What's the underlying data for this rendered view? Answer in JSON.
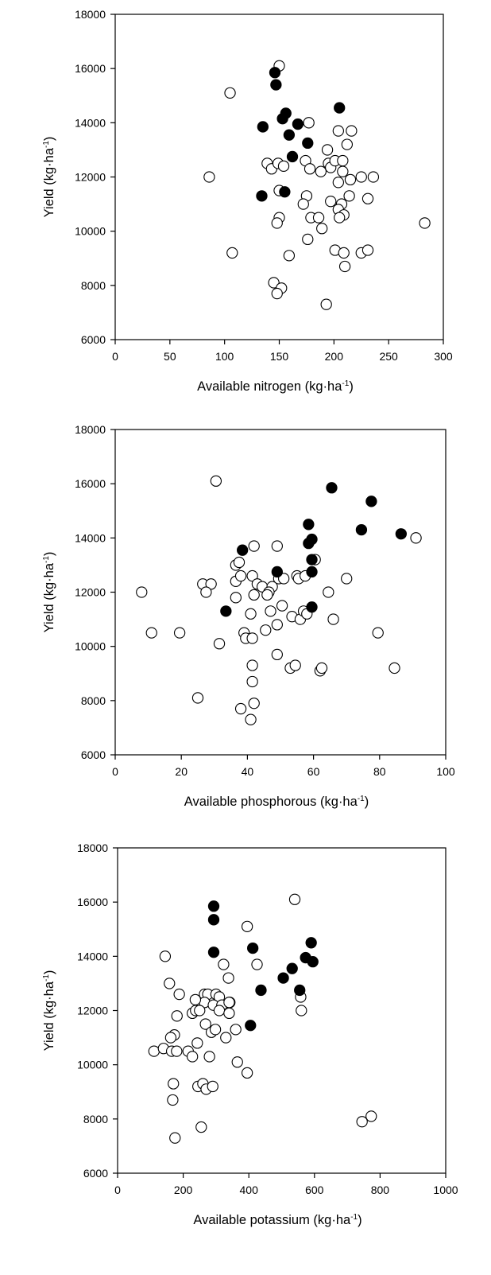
{
  "chart_data": [
    {
      "type": "scatter",
      "title": "",
      "xlabel": "Available nitrogen (kg·ha⁻¹)",
      "ylabel": "Yield (kg·ha⁻¹)",
      "xlabel_parts": {
        "main": "Available nitrogen (kg·ha",
        "sup": "-1",
        "close": ")"
      },
      "ylabel_parts": {
        "main": "Yield (kg·ha",
        "sup": "-1",
        "close": ")"
      },
      "xlim": [
        0,
        300
      ],
      "ylim": [
        6000,
        18000
      ],
      "xticks": [
        0,
        50,
        100,
        150,
        200,
        250,
        300
      ],
      "yticks": [
        6000,
        8000,
        10000,
        12000,
        14000,
        16000,
        18000
      ],
      "x_tick_labels": [
        "0",
        "50",
        "100",
        "150",
        "200",
        "250",
        "300"
      ],
      "y_tick_labels": [
        "6000",
        "8000",
        "10000",
        "12000",
        "14000",
        "16000",
        "18000"
      ],
      "grid": false,
      "series": [
        {
          "marker": "filled-circle",
          "color": "#000000",
          "points": [
            [
              146,
              15850
            ],
            [
              147,
              15400
            ],
            [
              156,
              14350
            ],
            [
              153,
              14150
            ],
            [
              167,
              13950
            ],
            [
              135,
              13850
            ],
            [
              159,
              13550
            ],
            [
              176,
              13250
            ],
            [
              162,
              12750
            ],
            [
              134,
              11300
            ],
            [
              155,
              11450
            ],
            [
              205,
              14550
            ]
          ]
        },
        {
          "marker": "open-circle",
          "color": "#ffffff",
          "points": [
            [
              150,
              16100
            ],
            [
              105,
              15100
            ],
            [
              177,
              14000
            ],
            [
              204,
              13700
            ],
            [
              216,
              13700
            ],
            [
              212,
              13200
            ],
            [
              194,
              13000
            ],
            [
              139,
              12500
            ],
            [
              143,
              12300
            ],
            [
              149,
              12500
            ],
            [
              154,
              12400
            ],
            [
              174,
              12600
            ],
            [
              178,
              12300
            ],
            [
              188,
              12200
            ],
            [
              195,
              12500
            ],
            [
              197,
              12350
            ],
            [
              201,
              12600
            ],
            [
              208,
              12600
            ],
            [
              208,
              12200
            ],
            [
              204,
              11800
            ],
            [
              215,
              11900
            ],
            [
              225,
              12000
            ],
            [
              236,
              12000
            ],
            [
              86,
              12000
            ],
            [
              150,
              11500
            ],
            [
              175,
              11300
            ],
            [
              172,
              11000
            ],
            [
              197,
              11100
            ],
            [
              207,
              11000
            ],
            [
              214,
              11300
            ],
            [
              231,
              11200
            ],
            [
              204,
              10800
            ],
            [
              209,
              10600
            ],
            [
              205,
              10500
            ],
            [
              150,
              10500
            ],
            [
              148,
              10300
            ],
            [
              179,
              10500
            ],
            [
              186,
              10500
            ],
            [
              176,
              9700
            ],
            [
              189,
              10100
            ],
            [
              107,
              9200
            ],
            [
              159,
              9100
            ],
            [
              201,
              9300
            ],
            [
              209,
              9200
            ],
            [
              225,
              9200
            ],
            [
              231,
              9300
            ],
            [
              210,
              8700
            ],
            [
              145,
              8100
            ],
            [
              152,
              7900
            ],
            [
              148,
              7700
            ],
            [
              193,
              7300
            ],
            [
              283,
              10300
            ]
          ]
        }
      ]
    },
    {
      "type": "scatter",
      "title": "",
      "xlabel": "Available phosphorous (kg·ha⁻¹)",
      "ylabel": "Yield (kg·ha⁻¹)",
      "xlabel_parts": {
        "main": "Available phosphorous (kg·ha",
        "sup": "-1",
        "close": ")"
      },
      "ylabel_parts": {
        "main": "Yield (kg·ha",
        "sup": "-1",
        "close": ")"
      },
      "xlim": [
        0,
        100
      ],
      "ylim": [
        6000,
        18000
      ],
      "xticks": [
        0,
        20,
        40,
        60,
        80,
        100
      ],
      "yticks": [
        6000,
        8000,
        10000,
        12000,
        14000,
        16000,
        18000
      ],
      "x_tick_labels": [
        "0",
        "20",
        "40",
        "60",
        "80",
        "100"
      ],
      "y_tick_labels": [
        "6000",
        "8000",
        "10000",
        "12000",
        "14000",
        "16000",
        "18000"
      ],
      "grid": false,
      "series": [
        {
          "marker": "filled-circle",
          "color": "#000000",
          "points": [
            [
              65.5,
              15850
            ],
            [
              77.5,
              15350
            ],
            [
              74.5,
              14300
            ],
            [
              86.5,
              14150
            ],
            [
              58.5,
              14500
            ],
            [
              59.5,
              13950
            ],
            [
              58.5,
              13800
            ],
            [
              59.5,
              13200
            ],
            [
              38.5,
              13550
            ],
            [
              49.0,
              12750
            ],
            [
              59.5,
              12750
            ],
            [
              33.5,
              11300
            ],
            [
              59.5,
              11450
            ]
          ]
        },
        {
          "marker": "open-circle",
          "color": "#ffffff",
          "points": [
            [
              30.5,
              16100
            ],
            [
              91.0,
              14000
            ],
            [
              42.0,
              13700
            ],
            [
              49.0,
              13700
            ],
            [
              60.5,
              13200
            ],
            [
              36.5,
              13000
            ],
            [
              37.5,
              13100
            ],
            [
              26.5,
              12300
            ],
            [
              29.0,
              12300
            ],
            [
              27.5,
              12000
            ],
            [
              36.5,
              12400
            ],
            [
              38.0,
              12600
            ],
            [
              41.5,
              12600
            ],
            [
              43.0,
              12300
            ],
            [
              44.5,
              12200
            ],
            [
              47.5,
              12200
            ],
            [
              46.5,
              12000
            ],
            [
              42.0,
              11900
            ],
            [
              36.5,
              11800
            ],
            [
              46.0,
              11900
            ],
            [
              49.5,
              12500
            ],
            [
              51.0,
              12500
            ],
            [
              55.0,
              12600
            ],
            [
              55.5,
              12500
            ],
            [
              57.5,
              12600
            ],
            [
              8.0,
              12000
            ],
            [
              64.5,
              12000
            ],
            [
              70.0,
              12500
            ],
            [
              41.0,
              11200
            ],
            [
              47.0,
              11300
            ],
            [
              50.5,
              11500
            ],
            [
              53.5,
              11100
            ],
            [
              56.0,
              11000
            ],
            [
              57.0,
              11300
            ],
            [
              58.0,
              11200
            ],
            [
              66.0,
              11000
            ],
            [
              11.0,
              10500
            ],
            [
              19.5,
              10500
            ],
            [
              31.5,
              10100
            ],
            [
              39.0,
              10500
            ],
            [
              39.5,
              10300
            ],
            [
              41.5,
              10300
            ],
            [
              45.5,
              10600
            ],
            [
              49.0,
              10800
            ],
            [
              79.5,
              10500
            ],
            [
              49.0,
              9700
            ],
            [
              41.5,
              9300
            ],
            [
              53.0,
              9200
            ],
            [
              54.5,
              9300
            ],
            [
              62.0,
              9100
            ],
            [
              62.5,
              9200
            ],
            [
              84.5,
              9200
            ],
            [
              41.5,
              8700
            ],
            [
              25.0,
              8100
            ],
            [
              38.0,
              7700
            ],
            [
              42.0,
              7900
            ],
            [
              41.0,
              7300
            ]
          ]
        }
      ]
    },
    {
      "type": "scatter",
      "title": "",
      "xlabel": "Available potassium (kg·ha⁻¹)",
      "ylabel": "Yield (kg·ha⁻¹)",
      "xlabel_parts": {
        "main": "Available potassium (kg·ha",
        "sup": "-1",
        "close": ")"
      },
      "ylabel_parts": {
        "main": "Yield (kg·ha",
        "sup": "-1",
        "close": ")"
      },
      "xlim": [
        0,
        1000
      ],
      "ylim": [
        6000,
        18000
      ],
      "xticks": [
        0,
        200,
        400,
        600,
        800,
        1000
      ],
      "yticks": [
        6000,
        8000,
        10000,
        12000,
        14000,
        16000,
        18000
      ],
      "x_tick_labels": [
        "0",
        "200",
        "400",
        "600",
        "800",
        "1000"
      ],
      "y_tick_labels": [
        "6000",
        "8000",
        "10000",
        "12000",
        "14000",
        "16000",
        "18000"
      ],
      "grid": false,
      "series": [
        {
          "marker": "filled-circle",
          "color": "#000000",
          "points": [
            [
              293,
              15850
            ],
            [
              293,
              15350
            ],
            [
              293,
              14150
            ],
            [
              412,
              14300
            ],
            [
              590,
              14500
            ],
            [
              573,
              13950
            ],
            [
              595,
              13800
            ],
            [
              505,
              13200
            ],
            [
              532,
              13550
            ],
            [
              437,
              12750
            ],
            [
              555,
              12750
            ],
            [
              405,
              11450
            ]
          ]
        },
        {
          "marker": "open-circle",
          "color": "#ffffff",
          "points": [
            [
              540,
              16100
            ],
            [
              395,
              15100
            ],
            [
              145,
              14000
            ],
            [
              425,
              13700
            ],
            [
              323,
              13700
            ],
            [
              338,
              13200
            ],
            [
              158,
              13000
            ],
            [
              188,
              12600
            ],
            [
              265,
              12600
            ],
            [
              275,
              12600
            ],
            [
              300,
              12600
            ],
            [
              310,
              12500
            ],
            [
              265,
              12300
            ],
            [
              292,
              12200
            ],
            [
              318,
              12200
            ],
            [
              342,
              12300
            ],
            [
              340,
              12300
            ],
            [
              237,
              12400
            ],
            [
              228,
              11900
            ],
            [
              238,
              12000
            ],
            [
              250,
              12000
            ],
            [
              310,
              12000
            ],
            [
              340,
              11900
            ],
            [
              558,
              12500
            ],
            [
              560,
              12000
            ],
            [
              181,
              11800
            ],
            [
              268,
              11500
            ],
            [
              286,
              11200
            ],
            [
              298,
              11300
            ],
            [
              330,
              11000
            ],
            [
              360,
              11300
            ],
            [
              173,
              11100
            ],
            [
              162,
              11000
            ],
            [
              111,
              10500
            ],
            [
              140,
              10600
            ],
            [
              165,
              10500
            ],
            [
              180,
              10500
            ],
            [
              215,
              10500
            ],
            [
              243,
              10800
            ],
            [
              228,
              10300
            ],
            [
              280,
              10300
            ],
            [
              365,
              10100
            ],
            [
              395,
              9700
            ],
            [
              170,
              9300
            ],
            [
              245,
              9200
            ],
            [
              260,
              9300
            ],
            [
              270,
              9100
            ],
            [
              290,
              9200
            ],
            [
              168,
              8700
            ],
            [
              255,
              7700
            ],
            [
              175,
              7300
            ],
            [
              745,
              7900
            ],
            [
              773,
              8100
            ]
          ]
        }
      ]
    }
  ]
}
